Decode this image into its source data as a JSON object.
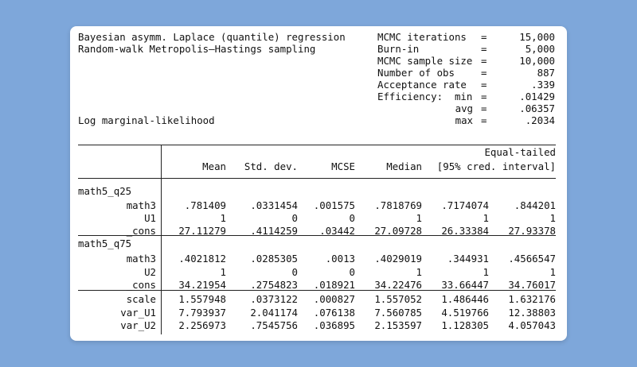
{
  "header": {
    "title1": "Bayesian asymm. Laplace (quantile) regression",
    "title2": "Random-walk Metropolis–Hastings sampling",
    "loglik": "Log marginal-likelihood",
    "stats": [
      {
        "label": "MCMC iterations",
        "eq": "=",
        "value": "15,000"
      },
      {
        "label": "Burn-in",
        "eq": "=",
        "value": "5,000"
      },
      {
        "label": "MCMC sample size",
        "eq": "=",
        "value": "10,000"
      },
      {
        "label": "Number of obs",
        "eq": "=",
        "value": "887"
      },
      {
        "label": "Acceptance rate",
        "eq": "=",
        "value": ".339"
      },
      {
        "label": "Efficiency:  min",
        "eq": "=",
        "value": ".01429"
      },
      {
        "label": "avg",
        "eq": "=",
        "value": ".06357"
      },
      {
        "label": "max",
        "eq": "=",
        "value": ".2034"
      }
    ]
  },
  "table": {
    "super_header": "Equal-tailed",
    "columns": [
      "Mean",
      "Std. dev.",
      "MCSE",
      "Median",
      "[95% cred. interval]"
    ],
    "groups": [
      {
        "name": "math5_q25",
        "rows": [
          {
            "label": "math3",
            "values": [
              ".781409",
              ".0331454",
              ".001575",
              ".7818769",
              ".7174074",
              ".844201"
            ]
          },
          {
            "label": "U1",
            "values": [
              "1",
              "0",
              "0",
              "1",
              "1",
              "1"
            ]
          },
          {
            "label": "_cons",
            "values": [
              "27.11279",
              ".4114259",
              ".03442",
              "27.09728",
              "26.33384",
              "27.93378"
            ]
          }
        ]
      },
      {
        "name": "math5_q75",
        "rows": [
          {
            "label": "math3",
            "values": [
              ".4021812",
              ".0285305",
              ".0013",
              ".4029019",
              ".344931",
              ".4566547"
            ]
          },
          {
            "label": "U2",
            "values": [
              "1",
              "0",
              "0",
              "1",
              "1",
              "1"
            ]
          },
          {
            "label": "_cons",
            "values": [
              "34.21954",
              ".2754823",
              ".018921",
              "34.22476",
              "33.66447",
              "34.76017"
            ]
          }
        ]
      }
    ],
    "extra_rows": [
      {
        "label": "scale",
        "values": [
          "1.557948",
          ".0373122",
          ".000827",
          "1.557052",
          "1.486446",
          "1.632176"
        ]
      },
      {
        "label": "var_U1",
        "values": [
          "7.793937",
          "2.041174",
          ".076138",
          "7.560785",
          "4.519766",
          "12.38803"
        ]
      },
      {
        "label": "var_U2",
        "values": [
          "2.256973",
          ".7545756",
          ".036895",
          "2.153597",
          "1.128305",
          "4.057043"
        ]
      }
    ]
  }
}
